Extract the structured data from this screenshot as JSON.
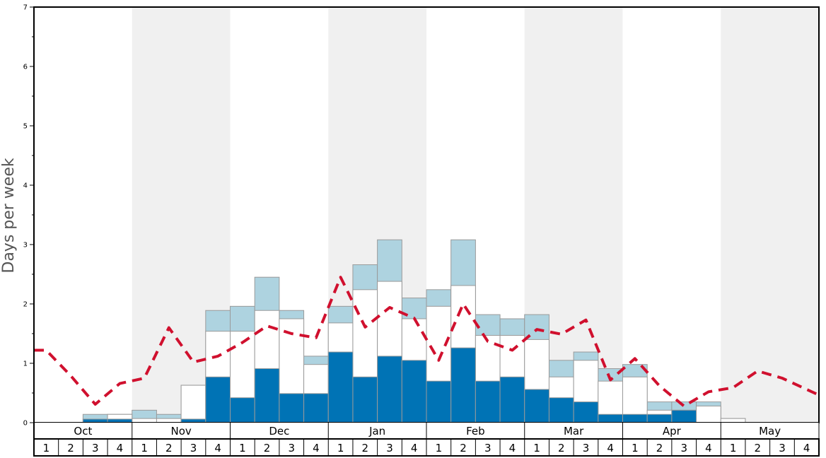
{
  "chart_data": {
    "type": "bar",
    "ylabel": "Days per week",
    "ylim": [
      0,
      7
    ],
    "yticks": [
      "0",
      "1",
      "2",
      "3",
      "4",
      "5",
      "6",
      "7"
    ],
    "months": [
      "Oct",
      "Nov",
      "Dec",
      "Jan",
      "Feb",
      "Mar",
      "Apr",
      "May"
    ],
    "weeks": [
      "1",
      "2",
      "3",
      "4"
    ],
    "colors": {
      "dark": "#0073b5",
      "white": "#ffffff",
      "light": "#aed3e0",
      "line": "#d0102e",
      "band": "#f0f0f0",
      "bar_stroke": "#9a9a9a"
    },
    "series": [
      {
        "values": [
          0,
          0,
          0.06,
          0.06,
          0,
          0,
          0.06,
          0.77,
          0.42,
          0.91,
          0.49,
          0.49,
          1.19,
          0.77,
          1.12,
          1.05,
          0.7,
          1.26,
          0.7,
          0.77,
          0.56,
          0.42,
          0.35,
          0.14,
          0.14,
          0.14,
          0.21,
          0,
          0,
          0,
          0,
          0
        ]
      },
      {
        "values": [
          0,
          0,
          0.06,
          0.14,
          0.07,
          0.07,
          0.63,
          1.54,
          1.54,
          1.89,
          1.75,
          0.98,
          1.68,
          2.24,
          2.38,
          1.75,
          1.96,
          2.31,
          1.47,
          1.47,
          1.4,
          0.77,
          1.05,
          0.7,
          0.77,
          0.21,
          0.21,
          0.28,
          0.07,
          0,
          0,
          0
        ]
      },
      {
        "values": [
          0,
          0,
          0.14,
          0.14,
          0.21,
          0.14,
          0.63,
          1.89,
          1.96,
          2.45,
          1.89,
          1.12,
          1.96,
          2.66,
          3.08,
          2.1,
          2.24,
          3.08,
          1.82,
          1.75,
          1.82,
          1.05,
          1.19,
          0.91,
          0.98,
          0.35,
          0.35,
          0.35,
          0.07,
          0,
          0,
          0
        ]
      },
      {
        "values": [
          1.22,
          0.79,
          0.31,
          0.66,
          0.75,
          1.6,
          1.02,
          1.12,
          1.35,
          1.63,
          1.5,
          1.43,
          2.45,
          1.61,
          1.94,
          1.76,
          1.05,
          2.0,
          1.37,
          1.22,
          1.57,
          1.49,
          1.73,
          0.72,
          1.08,
          0.62,
          0.28,
          0.52,
          0.59,
          0.87,
          0.75,
          0.56
        ]
      }
    ]
  }
}
